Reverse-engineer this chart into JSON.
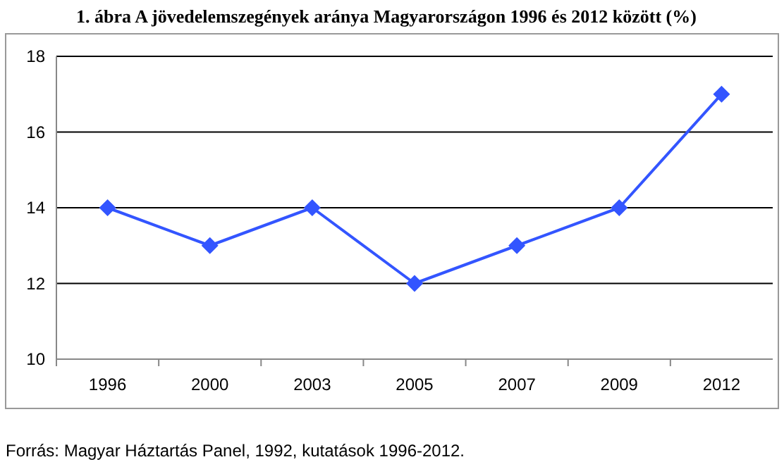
{
  "chart_data": {
    "type": "line",
    "title": "1. ábra A jövedelemszegények aránya Magyarországon 1996 és 2012 között (%)",
    "categories": [
      "1996",
      "2000",
      "2003",
      "2005",
      "2007",
      "2009",
      "2012"
    ],
    "series": [
      {
        "color": "#3355ff",
        "values": [
          14,
          13,
          14,
          12,
          13,
          14,
          17
        ]
      }
    ],
    "ylim": [
      10,
      18
    ],
    "yticks": [
      10,
      12,
      14,
      16,
      18
    ],
    "grid": "y",
    "marker": "diamond",
    "line_style": "solid",
    "annotations": [
      "Forrás: Magyar Háztartás Panel, 1992, kutatások 1996-2012."
    ]
  }
}
